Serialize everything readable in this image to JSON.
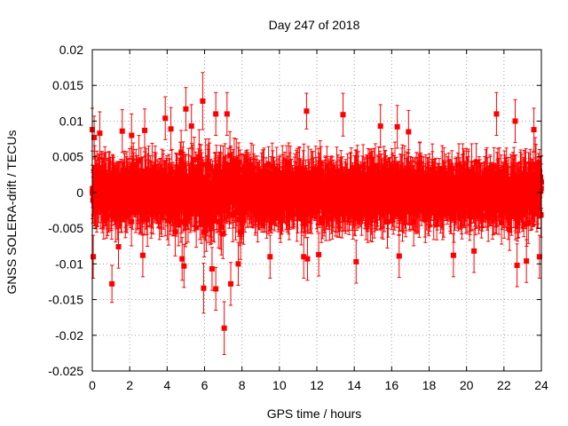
{
  "chart_data": {
    "type": "scatter",
    "title": "Day 247 of 2018",
    "xlabel": "GPS time / hours",
    "ylabel": "GNSS SOLERA-drift / TECUs",
    "xlim": [
      0,
      24
    ],
    "ylim": [
      -0.025,
      0.02
    ],
    "x_ticks": [
      0,
      2,
      4,
      6,
      8,
      10,
      12,
      14,
      16,
      18,
      20,
      22,
      24
    ],
    "y_ticks": [
      -0.025,
      -0.02,
      -0.015,
      -0.01,
      -0.005,
      0,
      0.005,
      0.01,
      0.015,
      0.02
    ],
    "x_tick_labels": [
      "0",
      "2",
      "4",
      "6",
      "8",
      "10",
      "12",
      "14",
      "16",
      "18",
      "20",
      "22",
      "24"
    ],
    "y_tick_labels": [
      "-0.025",
      "-0.02",
      "-0.015",
      "-0.01",
      "-0.005",
      "0",
      "0.005",
      "0.01",
      "0.015",
      "0.02"
    ],
    "grid": true,
    "series": [
      {
        "name": "SOLERA drift",
        "color": "#ff0000",
        "marker": "square",
        "error_bars": true,
        "note": "dense band of ~2000 points with error bars, spread roughly ±0.005 TECU around zero across 0–24 h",
        "typical_error": 0.003,
        "outliers": [
          {
            "x": 0.0,
            "y": 0.0088,
            "err": 0.003
          },
          {
            "x": 0.05,
            "y": -0.009,
            "err": 0.003
          },
          {
            "x": 0.1,
            "y": 0.0077,
            "err": 0.003
          },
          {
            "x": 0.4,
            "y": 0.0083,
            "err": 0.003
          },
          {
            "x": 1.05,
            "y": -0.0128,
            "err": 0.0026
          },
          {
            "x": 1.4,
            "y": -0.0076,
            "err": 0.003
          },
          {
            "x": 1.6,
            "y": 0.0086,
            "err": 0.003
          },
          {
            "x": 2.1,
            "y": 0.008,
            "err": 0.003
          },
          {
            "x": 2.7,
            "y": -0.0088,
            "err": 0.003
          },
          {
            "x": 2.8,
            "y": 0.0087,
            "err": 0.003
          },
          {
            "x": 3.9,
            "y": 0.0104,
            "err": 0.003
          },
          {
            "x": 4.2,
            "y": 0.0089,
            "err": 0.003
          },
          {
            "x": 4.8,
            "y": -0.0093,
            "err": 0.003
          },
          {
            "x": 4.9,
            "y": -0.0103,
            "err": 0.003
          },
          {
            "x": 5.0,
            "y": 0.0117,
            "err": 0.003
          },
          {
            "x": 5.3,
            "y": 0.0093,
            "err": 0.003
          },
          {
            "x": 5.9,
            "y": 0.0128,
            "err": 0.004
          },
          {
            "x": 5.95,
            "y": -0.0134,
            "err": 0.0035
          },
          {
            "x": 6.4,
            "y": -0.0107,
            "err": 0.003
          },
          {
            "x": 6.6,
            "y": 0.011,
            "err": 0.003
          },
          {
            "x": 6.6,
            "y": -0.0135,
            "err": 0.003
          },
          {
            "x": 7.05,
            "y": -0.019,
            "err": 0.0037
          },
          {
            "x": 7.2,
            "y": 0.011,
            "err": 0.003
          },
          {
            "x": 7.4,
            "y": -0.0128,
            "err": 0.003
          },
          {
            "x": 7.8,
            "y": -0.01,
            "err": 0.003
          },
          {
            "x": 9.5,
            "y": -0.009,
            "err": 0.003
          },
          {
            "x": 11.3,
            "y": -0.009,
            "err": 0.003
          },
          {
            "x": 11.45,
            "y": 0.0114,
            "err": 0.0025
          },
          {
            "x": 11.5,
            "y": -0.0093,
            "err": 0.003
          },
          {
            "x": 12.1,
            "y": -0.0087,
            "err": 0.003
          },
          {
            "x": 13.4,
            "y": 0.0109,
            "err": 0.003
          },
          {
            "x": 14.1,
            "y": -0.0097,
            "err": 0.003
          },
          {
            "x": 15.4,
            "y": 0.0093,
            "err": 0.003
          },
          {
            "x": 16.3,
            "y": 0.0092,
            "err": 0.003
          },
          {
            "x": 16.4,
            "y": -0.0089,
            "err": 0.003
          },
          {
            "x": 16.9,
            "y": 0.0085,
            "err": 0.003
          },
          {
            "x": 19.3,
            "y": -0.0088,
            "err": 0.003
          },
          {
            "x": 20.4,
            "y": -0.0082,
            "err": 0.003
          },
          {
            "x": 21.6,
            "y": 0.011,
            "err": 0.003
          },
          {
            "x": 22.6,
            "y": 0.01,
            "err": 0.003
          },
          {
            "x": 22.7,
            "y": -0.0102,
            "err": 0.003
          },
          {
            "x": 23.2,
            "y": -0.0096,
            "err": 0.003
          },
          {
            "x": 23.6,
            "y": 0.0088,
            "err": 0.003
          },
          {
            "x": 23.9,
            "y": -0.009,
            "err": 0.003
          }
        ]
      }
    ]
  }
}
